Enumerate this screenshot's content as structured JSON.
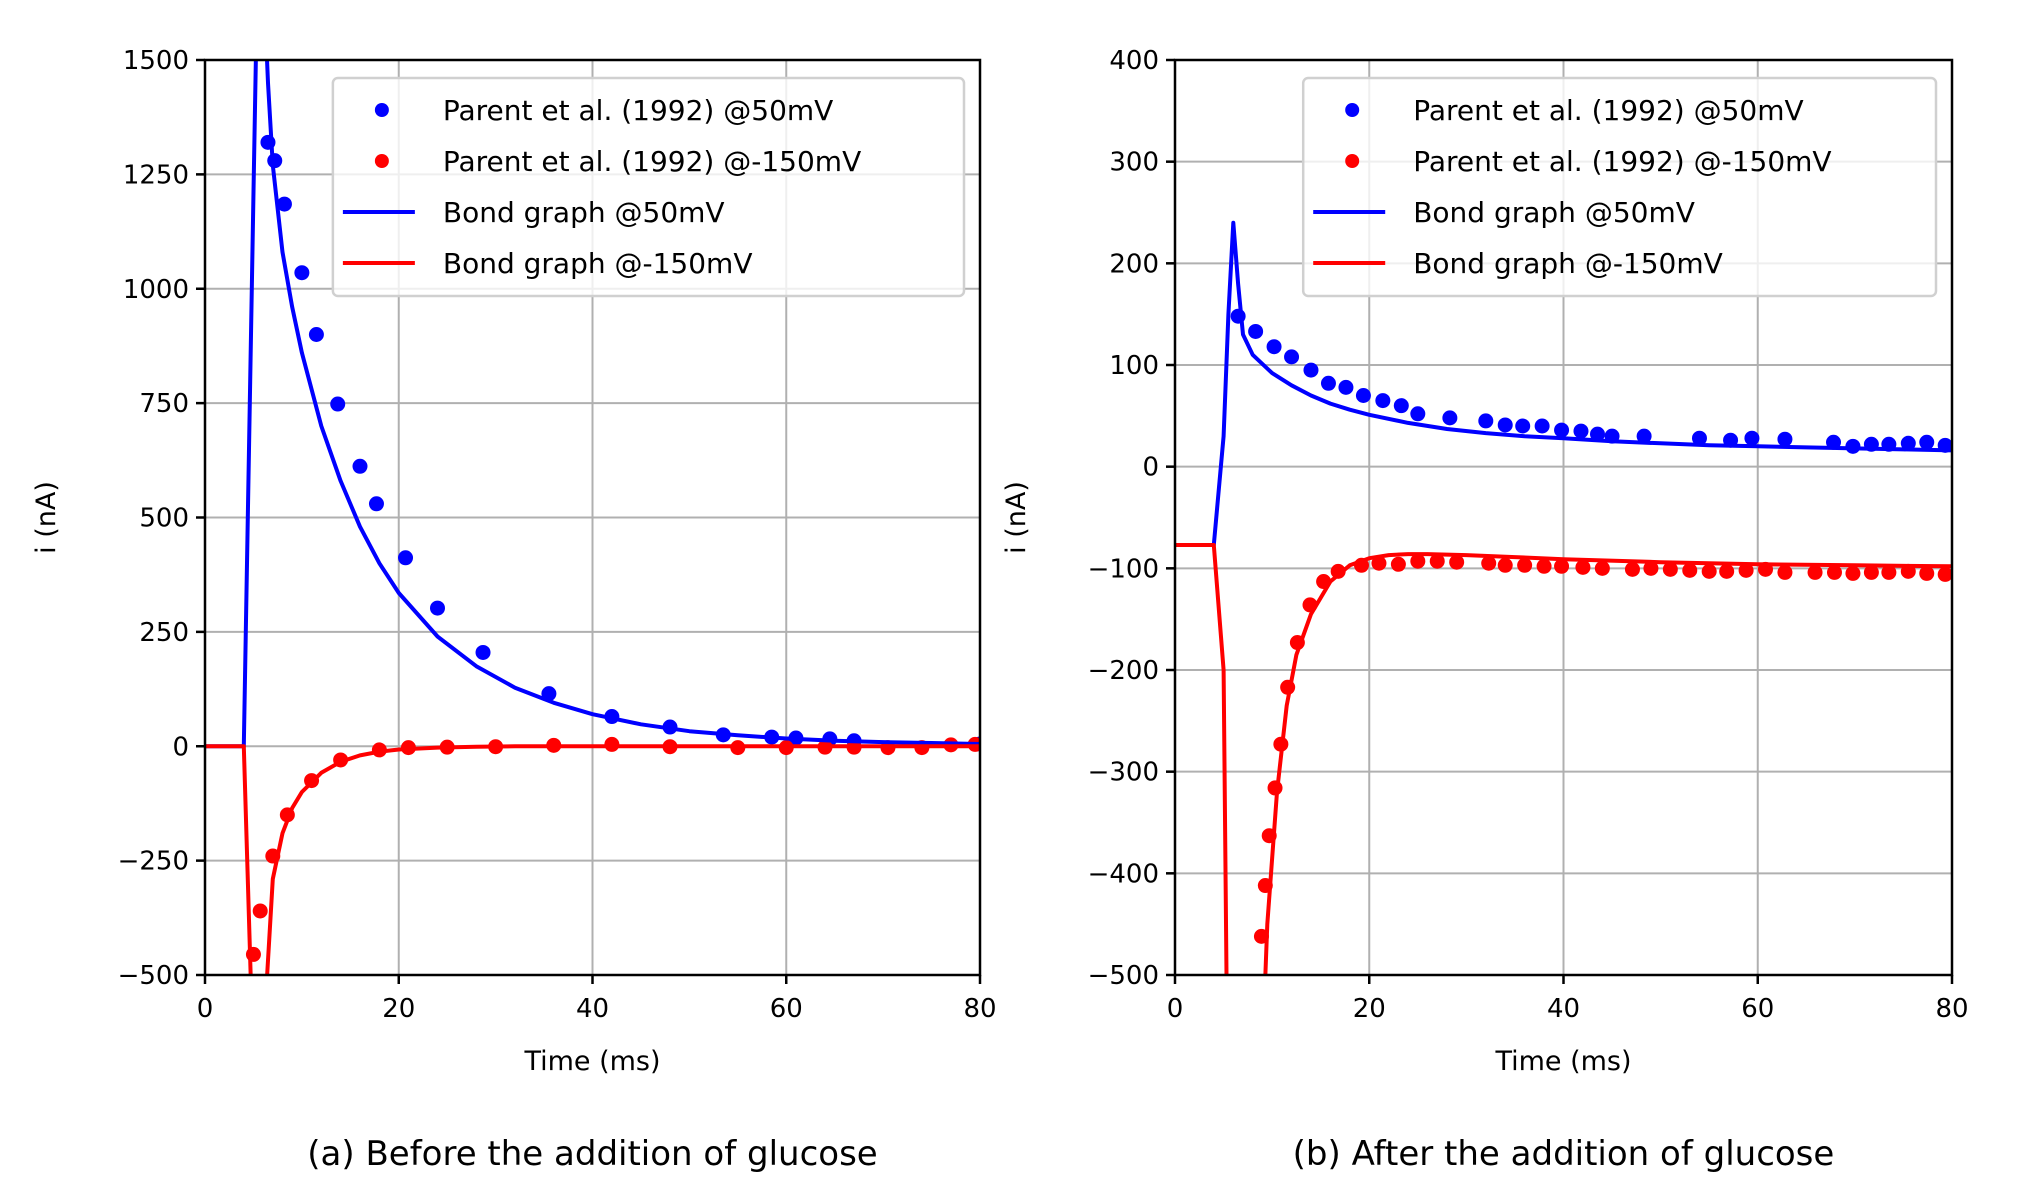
{
  "chart_data": [
    {
      "type": "scatter",
      "caption": "(a) Before the addition of glucose",
      "xlabel": "Time (ms)",
      "ylabel": "i (nA)",
      "xlim": [
        0,
        80
      ],
      "ylim": [
        -500,
        1500
      ],
      "xticks": [
        "0",
        "20",
        "40",
        "60",
        "80"
      ],
      "xtick_values": [
        0,
        20,
        40,
        60,
        80
      ],
      "yticks": [
        "1500",
        "1250",
        "1000",
        "750",
        "500",
        "250",
        "0",
        "−250",
        "−500"
      ],
      "ytick_values": [
        1500,
        1250,
        1000,
        750,
        500,
        250,
        0,
        -250,
        -500
      ],
      "grid": true,
      "legend_position": "top-right",
      "legend": [
        {
          "label": "Parent et al. (1992) @50mV",
          "kind": "marker",
          "color": "#0000ff"
        },
        {
          "label": "Parent et al. (1992) @-150mV",
          "kind": "marker",
          "color": "#ff0000"
        },
        {
          "label": "Bond graph @50mV",
          "kind": "line",
          "color": "#0000ff"
        },
        {
          "label": "Bond graph @-150mV",
          "kind": "line",
          "color": "#ff0000"
        }
      ],
      "series": [
        {
          "name": "Parent et al. (1992) @50mV",
          "kind": "scatter",
          "color": "#0000ff",
          "x": [
            6.5,
            7.2,
            8.2,
            10,
            11.5,
            13.7,
            16,
            17.7,
            20.7,
            24,
            28.7,
            35.5,
            42,
            48,
            53.5,
            58.5,
            61,
            64.5,
            67,
            80
          ],
          "y": [
            1320,
            1280,
            1185,
            1035,
            900,
            748,
            612,
            530,
            412,
            302,
            205,
            115,
            65,
            42,
            25,
            20,
            18,
            16,
            12,
            5
          ]
        },
        {
          "name": "Parent et al. (1992) @-150mV",
          "kind": "scatter",
          "color": "#ff0000",
          "x": [
            5,
            5.7,
            7,
            8.5,
            11,
            14,
            18,
            21,
            25,
            30,
            36,
            42,
            48,
            55,
            60,
            64,
            67,
            70.5,
            74,
            77,
            79.5
          ],
          "y": [
            -455,
            -360,
            -240,
            -150,
            -75,
            -30,
            -8,
            -3,
            -2,
            -1,
            2,
            4,
            -1,
            -3,
            -3,
            -2,
            -2,
            -3,
            -3,
            3,
            4
          ]
        },
        {
          "name": "Bond graph @50mV",
          "kind": "line",
          "color": "#0000ff",
          "x": [
            0,
            4,
            5,
            5.5,
            6,
            6.5,
            7,
            8,
            9,
            10,
            12,
            14,
            16,
            18,
            20,
            24,
            28,
            32,
            36,
            40,
            45,
            50,
            55,
            60,
            65,
            70,
            75,
            80
          ],
          "y": [
            0,
            0,
            1200,
            1800,
            1700,
            1450,
            1270,
            1080,
            960,
            860,
            700,
            580,
            480,
            400,
            335,
            240,
            175,
            128,
            95,
            70,
            48,
            33,
            24,
            17,
            12,
            9,
            7,
            5
          ]
        },
        {
          "name": "Bond graph @-150mV",
          "kind": "line",
          "color": "#ff0000",
          "x": [
            0,
            4,
            5,
            6,
            7,
            8,
            9,
            10,
            12,
            14,
            16,
            18,
            20,
            24,
            28,
            32,
            40,
            50,
            60,
            70,
            80
          ],
          "y": [
            0,
            0,
            -700,
            -650,
            -290,
            -190,
            -135,
            -100,
            -58,
            -34,
            -20,
            -12,
            -7,
            -3,
            -1,
            0,
            0,
            0,
            0,
            0,
            0
          ]
        }
      ]
    },
    {
      "type": "scatter",
      "caption": "(b) After the addition of glucose",
      "xlabel": "Time (ms)",
      "ylabel": "i (nA)",
      "xlim": [
        0,
        80
      ],
      "ylim": [
        -500,
        400
      ],
      "xticks": [
        "0",
        "20",
        "40",
        "60",
        "80"
      ],
      "xtick_values": [
        0,
        20,
        40,
        60,
        80
      ],
      "yticks": [
        "400",
        "300",
        "200",
        "100",
        "0",
        "−100",
        "−200",
        "−300",
        "−400",
        "−500"
      ],
      "ytick_values": [
        400,
        300,
        200,
        100,
        0,
        -100,
        -200,
        -300,
        -400,
        -500
      ],
      "grid": true,
      "legend_position": "top-right",
      "legend": [
        {
          "label": "Parent et al. (1992) @50mV",
          "kind": "marker",
          "color": "#0000ff"
        },
        {
          "label": "Parent et al. (1992) @-150mV",
          "kind": "marker",
          "color": "#ff0000"
        },
        {
          "label": "Bond graph @50mV",
          "kind": "line",
          "color": "#0000ff"
        },
        {
          "label": "Bond graph @-150mV",
          "kind": "line",
          "color": "#ff0000"
        }
      ],
      "series": [
        {
          "name": "Parent et al. (1992) @50mV",
          "kind": "scatter",
          "color": "#0000ff",
          "x": [
            6.5,
            8.3,
            10.2,
            12,
            14,
            15.8,
            17.6,
            19.4,
            21.4,
            23.3,
            25,
            28.3,
            32,
            34,
            35.8,
            37.8,
            39.8,
            41.8,
            43.5,
            45,
            48.3,
            54,
            57.2,
            59.4,
            62.8,
            67.8,
            69.8,
            71.7,
            73.5,
            75.5,
            77.4,
            79.3
          ],
          "y": [
            148,
            133,
            118,
            108,
            95,
            82,
            78,
            70,
            65,
            60,
            52,
            48,
            45,
            41,
            40,
            40,
            36,
            35,
            32,
            30,
            30,
            28,
            26,
            28,
            27,
            24,
            20,
            22,
            22,
            23,
            24,
            21
          ]
        },
        {
          "name": "Parent et al. (1992) @-150mV",
          "kind": "scatter",
          "color": "#ff0000",
          "x": [
            8.9,
            9.3,
            9.7,
            10.3,
            10.9,
            11.6,
            12.6,
            13.9,
            15.3,
            16.8,
            19.2,
            21,
            23,
            25,
            27,
            29,
            32.3,
            34,
            36,
            38,
            39.8,
            42,
            44,
            47.1,
            49,
            51,
            53,
            55,
            56.8,
            58.8,
            60.8,
            62.8,
            65.9,
            67.9,
            69.8,
            71.7,
            73.5,
            75.5,
            77.4,
            79.3
          ],
          "y": [
            -462,
            -412,
            -363,
            -316,
            -273,
            -217,
            -173,
            -136,
            -113,
            -103,
            -97,
            -95,
            -96,
            -93,
            -93,
            -94,
            -95,
            -97,
            -97,
            -98,
            -98,
            -99,
            -100,
            -101,
            -100,
            -101,
            -102,
            -103,
            -103,
            -102,
            -101,
            -104,
            -104,
            -104,
            -105,
            -104,
            -104,
            -103,
            -105,
            -106
          ]
        },
        {
          "name": "Bond graph @50mV",
          "kind": "line",
          "color": "#0000ff",
          "x": [
            0,
            4,
            5,
            5.5,
            6,
            6.5,
            7,
            8,
            10,
            12,
            14,
            16,
            18,
            20,
            24,
            28,
            32,
            36,
            40,
            45,
            50,
            55,
            60,
            65,
            70,
            75,
            80
          ],
          "y": [
            -77,
            -77,
            30,
            150,
            240,
            180,
            130,
            110,
            92,
            80,
            70,
            62,
            56,
            51,
            43,
            37,
            33,
            30,
            28,
            25,
            23,
            21,
            20,
            19,
            18,
            17,
            16
          ]
        },
        {
          "name": "Bond graph @-150mV",
          "kind": "line",
          "color": "#ff0000",
          "x": [
            0,
            4,
            5,
            5.3,
            5.6,
            6,
            8.5,
            9.5,
            10.5,
            11.5,
            12.5,
            14,
            16,
            18,
            20,
            22,
            24,
            26,
            30,
            35,
            40,
            50,
            60,
            70,
            80
          ],
          "y": [
            -77,
            -77,
            -200,
            -500,
            -700,
            -700,
            -700,
            -450,
            -320,
            -235,
            -185,
            -145,
            -113,
            -97,
            -90,
            -87,
            -86,
            -86,
            -87,
            -89,
            -91,
            -94,
            -96,
            -97,
            -98
          ]
        }
      ]
    }
  ]
}
